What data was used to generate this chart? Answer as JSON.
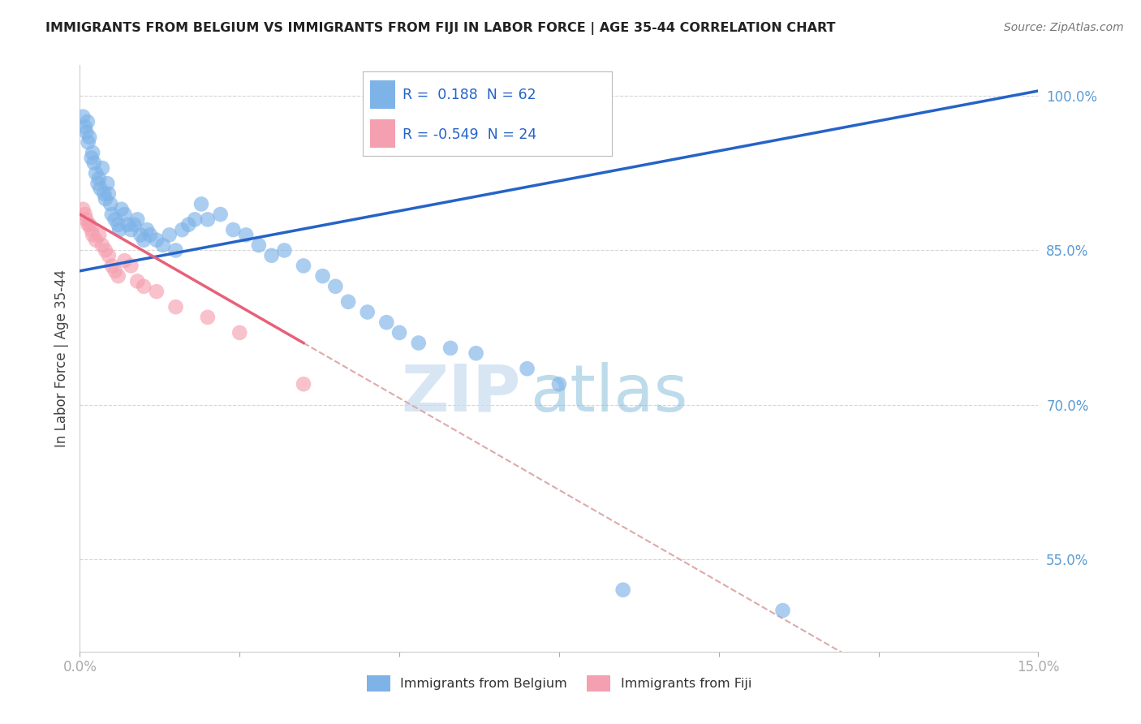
{
  "title": "IMMIGRANTS FROM BELGIUM VS IMMIGRANTS FROM FIJI IN LABOR FORCE | AGE 35-44 CORRELATION CHART",
  "source": "Source: ZipAtlas.com",
  "ylabel": "In Labor Force | Age 35-44",
  "xlim": [
    0.0,
    15.0
  ],
  "ylim": [
    46.0,
    103.0
  ],
  "yticks": [
    55.0,
    70.0,
    85.0,
    100.0
  ],
  "xtick_vals": [
    0.0,
    2.5,
    5.0,
    7.5,
    10.0,
    12.5,
    15.0
  ],
  "belgium_color": "#7EB3E8",
  "fiji_color": "#F5A0B0",
  "trend_belgium_color": "#2563C8",
  "trend_fiji_color": "#E8607A",
  "R_belgium": 0.188,
  "N_belgium": 62,
  "R_fiji": -0.549,
  "N_fiji": 24,
  "background_color": "#FFFFFF",
  "watermark_zip": "ZIP",
  "watermark_atlas": "atlas",
  "grid_color": "#CCCCCC",
  "trend_b_x0": 0.0,
  "trend_b_y0": 83.0,
  "trend_b_x1": 15.0,
  "trend_b_y1": 100.5,
  "trend_f_x0": 0.0,
  "trend_f_y0": 88.5,
  "trend_f_x1": 3.5,
  "trend_f_y1": 76.0,
  "trend_f_dash_x1": 15.0,
  "trend_f_dash_y1": 46.0,
  "belgium_scatter_x": [
    0.05,
    0.08,
    0.1,
    0.12,
    0.13,
    0.15,
    0.18,
    0.2,
    0.22,
    0.25,
    0.28,
    0.3,
    0.32,
    0.35,
    0.38,
    0.4,
    0.43,
    0.45,
    0.48,
    0.5,
    0.55,
    0.6,
    0.62,
    0.65,
    0.7,
    0.75,
    0.8,
    0.85,
    0.9,
    0.95,
    1.0,
    1.05,
    1.1,
    1.2,
    1.3,
    1.4,
    1.5,
    1.6,
    1.7,
    1.8,
    1.9,
    2.0,
    2.2,
    2.4,
    2.6,
    2.8,
    3.0,
    3.2,
    3.5,
    3.8,
    4.0,
    4.2,
    4.5,
    4.8,
    5.0,
    5.3,
    5.8,
    6.2,
    7.0,
    7.5,
    8.5,
    11.0
  ],
  "belgium_scatter_y": [
    98.0,
    97.0,
    96.5,
    97.5,
    95.5,
    96.0,
    94.0,
    94.5,
    93.5,
    92.5,
    91.5,
    92.0,
    91.0,
    93.0,
    90.5,
    90.0,
    91.5,
    90.5,
    89.5,
    88.5,
    88.0,
    87.5,
    87.0,
    89.0,
    88.5,
    87.5,
    87.0,
    87.5,
    88.0,
    86.5,
    86.0,
    87.0,
    86.5,
    86.0,
    85.5,
    86.5,
    85.0,
    87.0,
    87.5,
    88.0,
    89.5,
    88.0,
    88.5,
    87.0,
    86.5,
    85.5,
    84.5,
    85.0,
    83.5,
    82.5,
    81.5,
    80.0,
    79.0,
    78.0,
    77.0,
    76.0,
    75.5,
    75.0,
    73.5,
    72.0,
    52.0,
    50.0
  ],
  "fiji_scatter_x": [
    0.05,
    0.08,
    0.1,
    0.13,
    0.15,
    0.18,
    0.2,
    0.25,
    0.3,
    0.35,
    0.4,
    0.45,
    0.5,
    0.55,
    0.6,
    0.7,
    0.8,
    0.9,
    1.0,
    1.2,
    1.5,
    2.0,
    2.5,
    3.5
  ],
  "fiji_scatter_y": [
    89.0,
    88.5,
    88.0,
    87.5,
    87.5,
    87.0,
    86.5,
    86.0,
    86.5,
    85.5,
    85.0,
    84.5,
    83.5,
    83.0,
    82.5,
    84.0,
    83.5,
    82.0,
    81.5,
    81.0,
    79.5,
    78.5,
    77.0,
    72.0
  ]
}
